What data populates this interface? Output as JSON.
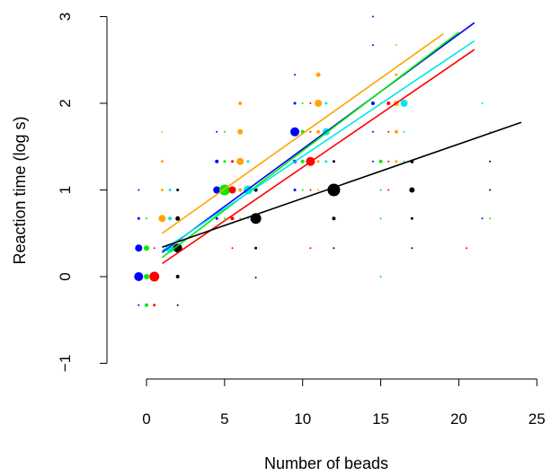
{
  "chart_data": {
    "type": "scatter",
    "xlabel": "Number of beads",
    "ylabel": "Reaction time (log s)",
    "xlim": [
      -1,
      25
    ],
    "ylim": [
      -1.2,
      3.2
    ],
    "xticks": [
      0,
      5,
      10,
      15,
      20,
      25
    ],
    "yticks": [
      -1,
      0,
      1,
      2,
      3
    ],
    "xtick_labels": [
      "0",
      "5",
      "10",
      "15",
      "20",
      "25"
    ],
    "ytick_labels": [
      "−1",
      "0",
      "1",
      "2",
      "3"
    ],
    "grid": false,
    "series": [
      {
        "color": "#0000ff",
        "points": [
          [
            -0.5,
            -0.33,
            1
          ],
          [
            -0.5,
            0,
            5
          ],
          [
            -0.5,
            0.33,
            4
          ],
          [
            -0.5,
            0.67,
            1.5
          ],
          [
            -0.5,
            1,
            1
          ],
          [
            4.5,
            0.67,
            1.5
          ],
          [
            4.5,
            1,
            4
          ],
          [
            4.5,
            1.33,
            2
          ],
          [
            4.5,
            1.67,
            1
          ],
          [
            9.5,
            1,
            1.5
          ],
          [
            9.5,
            1.33,
            2
          ],
          [
            9.5,
            1.67,
            5
          ],
          [
            9.5,
            2,
            1.5
          ],
          [
            9.5,
            2.33,
            1
          ],
          [
            14.5,
            1.33,
            1
          ],
          [
            14.5,
            1.67,
            1
          ],
          [
            14.5,
            2,
            2
          ],
          [
            14.5,
            2.67,
            1
          ],
          [
            14.5,
            3,
            1
          ],
          [
            21.5,
            0.67,
            1
          ]
        ],
        "fit": [
          [
            1,
            0.28
          ],
          [
            21,
            2.93
          ]
        ]
      },
      {
        "color": "#00ee00",
        "points": [
          [
            0,
            -0.33,
            2
          ],
          [
            0,
            0,
            3
          ],
          [
            0,
            0.33,
            3
          ],
          [
            0,
            0.67,
            1
          ],
          [
            5,
            0.67,
            1
          ],
          [
            5,
            1,
            6
          ],
          [
            5,
            1.33,
            1.5
          ],
          [
            5,
            1.67,
            1
          ],
          [
            10,
            1,
            1
          ],
          [
            10,
            1.33,
            2
          ],
          [
            10,
            1.67,
            2
          ],
          [
            10,
            2,
            1
          ],
          [
            15,
            0,
            1
          ],
          [
            15,
            0.67,
            1
          ],
          [
            15,
            1,
            1
          ],
          [
            15,
            1.33,
            2
          ],
          [
            15,
            2,
            1
          ],
          [
            22,
            0.67,
            1
          ]
        ],
        "fit": [
          [
            1,
            0.22
          ],
          [
            20,
            2.82
          ]
        ]
      },
      {
        "color": "#ff0000",
        "points": [
          [
            0.5,
            -0.33,
            1.5
          ],
          [
            0.5,
            0,
            5.5
          ],
          [
            0.5,
            0.33,
            1
          ],
          [
            5.5,
            0.33,
            1
          ],
          [
            5.5,
            0.67,
            2
          ],
          [
            5.5,
            1,
            4
          ],
          [
            5.5,
            1.33,
            1.5
          ],
          [
            10.5,
            0.33,
            1
          ],
          [
            10.5,
            1,
            1
          ],
          [
            10.5,
            1.33,
            5
          ],
          [
            10.5,
            1.67,
            1
          ],
          [
            10.5,
            2,
            1
          ],
          [
            15.5,
            1,
            1
          ],
          [
            15.5,
            1.33,
            1
          ],
          [
            15.5,
            1.67,
            1
          ],
          [
            15.5,
            2,
            2
          ],
          [
            20.5,
            0.33,
            1
          ]
        ],
        "fit": [
          [
            1,
            0.15
          ],
          [
            21,
            2.62
          ]
        ]
      },
      {
        "color": "#ffa500",
        "points": [
          [
            1,
            0.67,
            4
          ],
          [
            1,
            1,
            1.5
          ],
          [
            1,
            1.33,
            1.5
          ],
          [
            1,
            1.67,
            1
          ],
          [
            6,
            0.67,
            1
          ],
          [
            6,
            1,
            2
          ],
          [
            6,
            1.33,
            4
          ],
          [
            6,
            1.67,
            3
          ],
          [
            6,
            2,
            2
          ],
          [
            11,
            1,
            1
          ],
          [
            11,
            1.33,
            1.5
          ],
          [
            11,
            1.67,
            2
          ],
          [
            11,
            2,
            4
          ],
          [
            11,
            2.33,
            2.5
          ],
          [
            16,
            1.33,
            1.5
          ],
          [
            16,
            1.67,
            2
          ],
          [
            16,
            2,
            3
          ],
          [
            16,
            2.33,
            1.5
          ],
          [
            16,
            2.67,
            1
          ]
        ],
        "fit": [
          [
            1,
            0.5
          ],
          [
            19,
            2.8
          ]
        ]
      },
      {
        "color": "#00e5ee",
        "points": [
          [
            1.5,
            0.33,
            5
          ],
          [
            1.5,
            0.67,
            2
          ],
          [
            1.5,
            1,
            1.5
          ],
          [
            6.5,
            0.67,
            1
          ],
          [
            6.5,
            1,
            5
          ],
          [
            6.5,
            1.33,
            1.5
          ],
          [
            11.5,
            1.33,
            1.5
          ],
          [
            11.5,
            1.67,
            4
          ],
          [
            11.5,
            2,
            1.5
          ],
          [
            16.5,
            1.33,
            1
          ],
          [
            16.5,
            1.67,
            1
          ],
          [
            16.5,
            2,
            4
          ],
          [
            16.5,
            2.33,
            1
          ],
          [
            21.5,
            2,
            1
          ]
        ],
        "fit": [
          [
            1,
            0.3
          ],
          [
            21,
            2.72
          ]
        ]
      },
      {
        "color": "#000000",
        "points": [
          [
            2,
            -0.33,
            1
          ],
          [
            2,
            0,
            2
          ],
          [
            2,
            0.33,
            5
          ],
          [
            2,
            0.67,
            2.5
          ],
          [
            2,
            1,
            1.5
          ],
          [
            7,
            -0.01,
            1
          ],
          [
            7,
            0.33,
            1.5
          ],
          [
            7,
            0.67,
            6
          ],
          [
            7,
            1,
            2
          ],
          [
            12,
            0.33,
            1
          ],
          [
            12,
            0.67,
            2
          ],
          [
            12,
            1,
            7
          ],
          [
            12,
            1.33,
            1.5
          ],
          [
            17,
            0.33,
            1
          ],
          [
            17,
            0.67,
            1.5
          ],
          [
            17,
            1,
            3
          ],
          [
            17,
            1.33,
            2
          ],
          [
            22,
            1,
            1
          ],
          [
            22,
            1.33,
            1
          ],
          [
            22,
            1.67,
            0.5
          ]
        ],
        "fit": [
          [
            1,
            0.34
          ],
          [
            24,
            1.78
          ]
        ]
      }
    ]
  }
}
